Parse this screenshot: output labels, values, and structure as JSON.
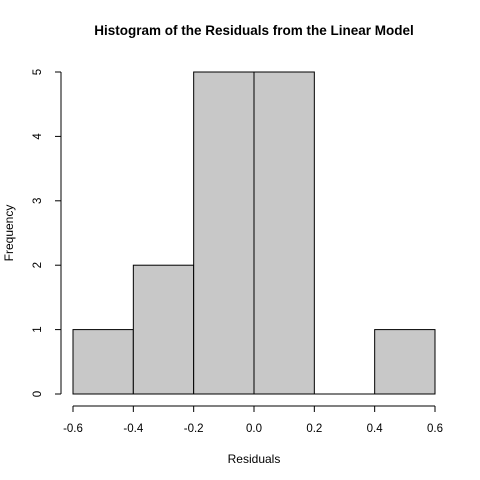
{
  "chart_data": {
    "type": "bar",
    "title": "Histogram of the Residuals from the Linear Model",
    "xlabel": "Residuals",
    "ylabel": "Frequency",
    "bins": [
      {
        "start": -0.6,
        "end": -0.4,
        "count": 1
      },
      {
        "start": -0.4,
        "end": -0.2,
        "count": 2
      },
      {
        "start": -0.2,
        "end": 0.0,
        "count": 5
      },
      {
        "start": 0.0,
        "end": 0.2,
        "count": 5
      },
      {
        "start": 0.2,
        "end": 0.4,
        "count": 0
      },
      {
        "start": 0.4,
        "end": 0.6,
        "count": 1
      }
    ],
    "xlim": [
      -0.6,
      0.6
    ],
    "ylim": [
      0,
      5
    ],
    "xticks": [
      "-0.6",
      "-0.4",
      "-0.2",
      "0.0",
      "0.2",
      "0.4",
      "0.6"
    ],
    "yticks": [
      "0",
      "1",
      "2",
      "3",
      "4",
      "5"
    ],
    "grid": false,
    "bar_color": "#c8c8c8",
    "edge_color": "#000000"
  }
}
